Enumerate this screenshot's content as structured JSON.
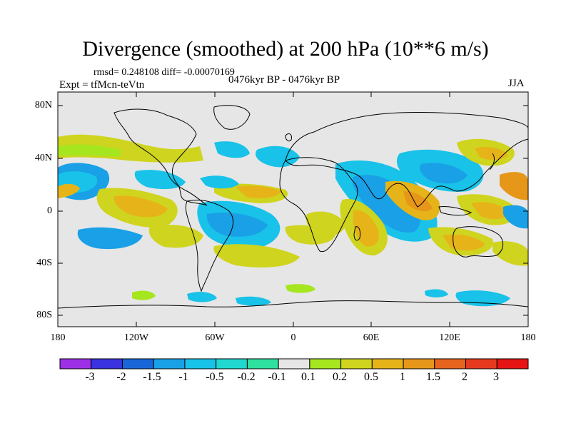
{
  "header": {
    "title": "Divergence (smoothed) at 200 hPa (10**6 m/s)",
    "stats": "rmsd= 0.248108 diff= -0.00070169",
    "expt": "Expt = tfMcn-teVtn",
    "period": "0476kyr BP - 0476kyr BP",
    "season": "JJA"
  },
  "axes": {
    "lat_labels": [
      "80N",
      "40N",
      "0",
      "40S",
      "80S"
    ],
    "lon_labels": [
      "180",
      "120W",
      "60W",
      "0",
      "60E",
      "120E",
      "180"
    ]
  },
  "colorbar": {
    "labels": [
      "-3",
      "-2",
      "-1.5",
      "-1",
      "-0.5",
      "-0.2",
      "-0.1",
      "0.1",
      "0.2",
      "0.5",
      "1",
      "1.5",
      "2",
      "3"
    ],
    "colors": [
      "#9d2fe6",
      "#3a33e0",
      "#1966d8",
      "#19a0e6",
      "#18c2e8",
      "#20d8d0",
      "#2fe0a0",
      "#e6e6e6",
      "#a5e61e",
      "#cfd41e",
      "#e6b419",
      "#e69619",
      "#e6641e",
      "#e63a1e",
      "#e61414"
    ]
  },
  "palette": {
    "ocean_bg": "#e6e6e6",
    "coast": "#000000"
  }
}
